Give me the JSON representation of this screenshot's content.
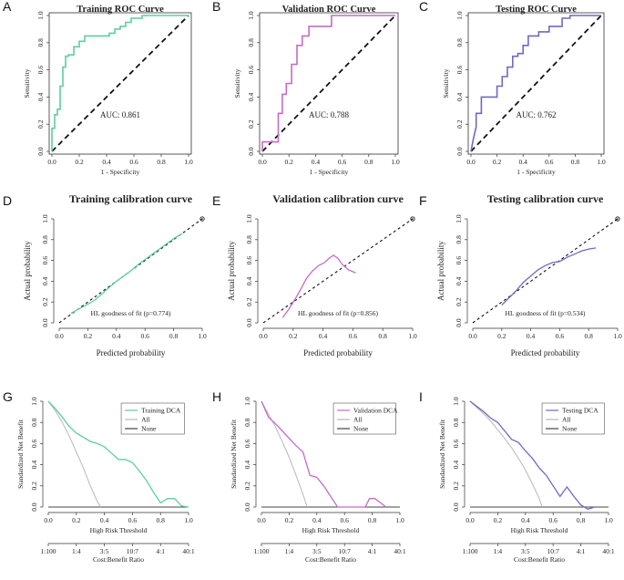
{
  "colors": {
    "training": "#5ccf9e",
    "validation": "#c36cc7",
    "testing": "#6f69c2",
    "all": "#b8b8b8",
    "none": "#444444",
    "axis": "#333333"
  },
  "chart_data": [
    {
      "id": "A",
      "letter": "A",
      "type": "line",
      "kind": "roc",
      "title": "Training ROC Curve",
      "xlabel": "1 - Specificity",
      "ylabel": "Sensitivity",
      "xlim": [
        0,
        1
      ],
      "ylim": [
        0,
        1
      ],
      "xticks": [
        "0.0",
        "0.2",
        "0.4",
        "0.6",
        "0.8",
        "1.0"
      ],
      "yticks": [
        "0.0",
        "0.2",
        "0.4",
        "0.6",
        "0.8",
        "1.0"
      ],
      "annotation": "AUC: 0.861",
      "color_key": "training",
      "series": [
        {
          "x": [
            0,
            0,
            0.02,
            0.02,
            0.04,
            0.04,
            0.06,
            0.06,
            0.08,
            0.08,
            0.1,
            0.1,
            0.12,
            0.12,
            0.16,
            0.16,
            0.2,
            0.2,
            0.24,
            0.24,
            0.42,
            0.42,
            0.46,
            0.46,
            0.5,
            0.5,
            0.54,
            0.54,
            0.58,
            0.58,
            0.66,
            0.66,
            1.0
          ],
          "y": [
            0,
            0.17,
            0.17,
            0.27,
            0.27,
            0.31,
            0.31,
            0.48,
            0.48,
            0.62,
            0.62,
            0.7,
            0.7,
            0.71,
            0.71,
            0.77,
            0.77,
            0.81,
            0.81,
            0.85,
            0.85,
            0.87,
            0.87,
            0.9,
            0.9,
            0.92,
            0.92,
            0.95,
            0.95,
            0.98,
            0.98,
            1.0,
            1.0
          ]
        }
      ]
    },
    {
      "id": "B",
      "letter": "B",
      "type": "line",
      "kind": "roc",
      "title": "Validation ROC Curve",
      "xlabel": "1 - Specificity",
      "ylabel": "Sensitivity",
      "xlim": [
        0,
        1
      ],
      "ylim": [
        0,
        1
      ],
      "xticks": [
        "0.0",
        "0.2",
        "0.4",
        "0.6",
        "0.8",
        "1.0"
      ],
      "yticks": [
        "0.0",
        "0.2",
        "0.4",
        "0.6",
        "0.8",
        "1.0"
      ],
      "annotation": "AUC: 0.788",
      "color_key": "validation",
      "series": [
        {
          "x": [
            0,
            0,
            0.05,
            0.05,
            0.12,
            0.12,
            0.15,
            0.15,
            0.18,
            0.18,
            0.22,
            0.22,
            0.26,
            0.26,
            0.3,
            0.3,
            0.35,
            0.35,
            0.52,
            0.52,
            1.0
          ],
          "y": [
            0,
            0.07,
            0.07,
            0.07,
            0.07,
            0.28,
            0.28,
            0.42,
            0.42,
            0.5,
            0.5,
            0.64,
            0.64,
            0.78,
            0.78,
            0.85,
            0.85,
            0.92,
            0.92,
            1.0,
            1.0
          ]
        }
      ]
    },
    {
      "id": "C",
      "letter": "C",
      "type": "line",
      "kind": "roc",
      "title": "Testing ROC Curve",
      "xlabel": "1 - Specificity",
      "ylabel": "Sensitivity",
      "xlim": [
        0,
        1
      ],
      "ylim": [
        0,
        1
      ],
      "xticks": [
        "0.0",
        "0.2",
        "0.4",
        "0.6",
        "0.8",
        "1.0"
      ],
      "yticks": [
        "0.0",
        "0.2",
        "0.4",
        "0.6",
        "0.8",
        "1.0"
      ],
      "annotation": "AUC: 0.762",
      "color_key": "testing",
      "series": [
        {
          "x": [
            0,
            0.02,
            0.04,
            0.04,
            0.08,
            0.08,
            0.2,
            0.2,
            0.24,
            0.24,
            0.28,
            0.28,
            0.32,
            0.32,
            0.36,
            0.36,
            0.4,
            0.4,
            0.44,
            0.44,
            0.52,
            0.52,
            0.6,
            0.6,
            0.7,
            0.7,
            0.76,
            0.76,
            1.0
          ],
          "y": [
            0,
            0.1,
            0.18,
            0.28,
            0.28,
            0.4,
            0.4,
            0.48,
            0.48,
            0.55,
            0.55,
            0.62,
            0.62,
            0.7,
            0.7,
            0.72,
            0.72,
            0.78,
            0.78,
            0.85,
            0.85,
            0.88,
            0.88,
            0.92,
            0.92,
            0.98,
            0.98,
            1.0,
            1.0
          ]
        }
      ]
    },
    {
      "id": "D",
      "letter": "D",
      "type": "line",
      "kind": "calibration",
      "title": "Training calibration curve",
      "xlabel": "Predicted probability",
      "ylabel": "Actual probability",
      "xlim": [
        0,
        1
      ],
      "ylim": [
        0,
        1
      ],
      "xticks": [
        "0.0",
        "0.2",
        "0.4",
        "0.6",
        "0.8",
        "1.0"
      ],
      "yticks": [
        "0.0",
        "0.2",
        "0.4",
        "0.6",
        "0.8",
        "1.0"
      ],
      "annotation": "HL goodness of fit (p=0.774)",
      "color_key": "training",
      "series": [
        {
          "x": [
            0.08,
            0.12,
            0.16,
            0.2,
            0.25,
            0.3,
            0.35,
            0.4,
            0.45,
            0.5,
            0.55,
            0.6,
            0.65,
            0.7,
            0.75,
            0.8,
            0.86
          ],
          "y": [
            0.09,
            0.12,
            0.15,
            0.18,
            0.22,
            0.28,
            0.34,
            0.4,
            0.45,
            0.5,
            0.56,
            0.61,
            0.66,
            0.71,
            0.76,
            0.81,
            0.86
          ]
        }
      ]
    },
    {
      "id": "E",
      "letter": "E",
      "type": "line",
      "kind": "calibration",
      "title": "Validation calibration curve",
      "xlabel": "Predicted probability",
      "ylabel": "Actual probability",
      "xlim": [
        0,
        1
      ],
      "ylim": [
        0,
        1
      ],
      "xticks": [
        "0.0",
        "0.2",
        "0.4",
        "0.6",
        "0.8",
        "1.0"
      ],
      "yticks": [
        "0.0",
        "0.2",
        "0.4",
        "0.6",
        "0.8",
        "1.0"
      ],
      "annotation": "HL goodness of fit (p=0.856)",
      "color_key": "validation",
      "series": [
        {
          "x": [
            0.13,
            0.17,
            0.21,
            0.25,
            0.29,
            0.33,
            0.37,
            0.41,
            0.44,
            0.47,
            0.5,
            0.53,
            0.57,
            0.62
          ],
          "y": [
            0.05,
            0.13,
            0.22,
            0.32,
            0.43,
            0.5,
            0.55,
            0.58,
            0.62,
            0.65,
            0.62,
            0.56,
            0.51,
            0.48
          ]
        }
      ]
    },
    {
      "id": "F",
      "letter": "F",
      "type": "line",
      "kind": "calibration",
      "title": "Testing calibration curve",
      "xlabel": "Predicted probability",
      "ylabel": "Actual probability",
      "xlim": [
        0,
        1
      ],
      "ylim": [
        0,
        1
      ],
      "xticks": [
        "0.0",
        "0.2",
        "0.4",
        "0.6",
        "0.8",
        "1.0"
      ],
      "yticks": [
        "0.0",
        "0.2",
        "0.4",
        "0.6",
        "0.8",
        "1.0"
      ],
      "annotation": "HL goodness of fit (p=0.534)",
      "color_key": "testing",
      "series": [
        {
          "x": [
            0.2,
            0.25,
            0.3,
            0.35,
            0.4,
            0.45,
            0.5,
            0.55,
            0.6,
            0.65,
            0.7,
            0.75,
            0.8,
            0.85
          ],
          "y": [
            0.17,
            0.24,
            0.31,
            0.39,
            0.45,
            0.51,
            0.55,
            0.58,
            0.59,
            0.63,
            0.66,
            0.69,
            0.71,
            0.72
          ]
        }
      ]
    },
    {
      "id": "G",
      "letter": "G",
      "type": "line",
      "kind": "dca",
      "xlabel": "High Risk Threshold",
      "ylabel": "Standardized Net Benefit",
      "xlabel2": "Cost:Benefit Ratio",
      "xlim": [
        0,
        1
      ],
      "ylim": [
        0,
        1
      ],
      "xticks": [
        "0.0",
        "0.2",
        "0.4",
        "0.6",
        "0.8",
        "1.0"
      ],
      "yticks": [
        "0.0",
        "0.2",
        "0.4",
        "0.6",
        "0.8",
        "1.0"
      ],
      "ratio_ticks": [
        "1:100",
        "1:4",
        "3:5",
        "10:7",
        "4:1",
        "40:1"
      ],
      "color_key": "training",
      "legend": [
        "Training DCA",
        "All",
        "None"
      ],
      "model": {
        "x": [
          0,
          0.05,
          0.1,
          0.15,
          0.2,
          0.25,
          0.3,
          0.35,
          0.4,
          0.45,
          0.5,
          0.55,
          0.6,
          0.65,
          0.7,
          0.75,
          0.8,
          0.85,
          0.9,
          0.95,
          1.0
        ],
        "y": [
          1.0,
          0.93,
          0.85,
          0.76,
          0.7,
          0.66,
          0.62,
          0.6,
          0.57,
          0.51,
          0.45,
          0.45,
          0.42,
          0.34,
          0.25,
          0.14,
          0.04,
          0.08,
          0.08,
          0.01,
          0.0
        ]
      },
      "all": {
        "x": [
          0,
          0.05,
          0.1,
          0.15,
          0.2,
          0.25,
          0.3,
          0.35,
          0.375
        ],
        "y": [
          1.0,
          0.91,
          0.8,
          0.67,
          0.52,
          0.37,
          0.2,
          0.05,
          0.0
        ]
      }
    },
    {
      "id": "H",
      "letter": "H",
      "type": "line",
      "kind": "dca",
      "xlabel": "High Risk Threshold",
      "ylabel": "Standardized Net Benefit",
      "xlabel2": "Cost:Benefit Ratio",
      "xlim": [
        0,
        1
      ],
      "ylim": [
        0,
        1
      ],
      "xticks": [
        "0.0",
        "0.2",
        "0.4",
        "0.6",
        "0.8",
        "1.0"
      ],
      "yticks": [
        "0.0",
        "0.2",
        "0.4",
        "0.6",
        "0.8",
        "1.0"
      ],
      "ratio_ticks": [
        "1:100",
        "1:4",
        "3:5",
        "10:7",
        "4:1",
        "40:1"
      ],
      "color_key": "validation",
      "legend": [
        "Validation DCA",
        "All",
        "None"
      ],
      "model": {
        "x": [
          0,
          0.05,
          0.1,
          0.15,
          0.2,
          0.25,
          0.3,
          0.35,
          0.4,
          0.45,
          0.5,
          0.55,
          0.6,
          0.65,
          0.7,
          0.75,
          0.78,
          0.82,
          0.86,
          0.9
        ],
        "y": [
          1.0,
          0.85,
          0.79,
          0.72,
          0.65,
          0.58,
          0.52,
          0.3,
          0.28,
          0.2,
          0.1,
          0.0,
          0.0,
          0.0,
          0.0,
          0.0,
          0.08,
          0.08,
          0.04,
          0.0
        ]
      },
      "all": {
        "x": [
          0,
          0.05,
          0.1,
          0.15,
          0.2,
          0.25,
          0.3,
          0.33
        ],
        "y": [
          1.0,
          0.88,
          0.76,
          0.62,
          0.47,
          0.3,
          0.12,
          0.0
        ]
      }
    },
    {
      "id": "I",
      "letter": "I",
      "type": "line",
      "kind": "dca",
      "xlabel": "High Risk Threshold",
      "ylabel": "Standardized Net Benefit",
      "xlabel2": "Cost:Benefit Ratio",
      "xlim": [
        0,
        1
      ],
      "ylim": [
        0,
        1
      ],
      "xticks": [
        "0.0",
        "0.2",
        "0.4",
        "0.6",
        "0.8",
        "1.0"
      ],
      "yticks": [
        "0.0",
        "0.2",
        "0.4",
        "0.6",
        "0.8",
        "1.0"
      ],
      "ratio_ticks": [
        "1:100",
        "1:4",
        "3:5",
        "10:7",
        "4:1",
        "40:1"
      ],
      "color_key": "testing",
      "legend": [
        "Testing DCA",
        "All",
        "None"
      ],
      "model": {
        "x": [
          0,
          0.05,
          0.1,
          0.15,
          0.2,
          0.25,
          0.3,
          0.35,
          0.4,
          0.45,
          0.5,
          0.55,
          0.6,
          0.65,
          0.7,
          0.75,
          0.8,
          0.85,
          0.9
        ],
        "y": [
          1.0,
          0.95,
          0.9,
          0.84,
          0.8,
          0.72,
          0.64,
          0.61,
          0.53,
          0.46,
          0.37,
          0.3,
          0.2,
          0.1,
          0.19,
          0.1,
          0.02,
          -0.02,
          0.0
        ]
      },
      "all": {
        "x": [
          0,
          0.05,
          0.1,
          0.15,
          0.2,
          0.25,
          0.3,
          0.35,
          0.4,
          0.45,
          0.5,
          0.52
        ],
        "y": [
          1.0,
          0.94,
          0.88,
          0.81,
          0.73,
          0.65,
          0.56,
          0.46,
          0.35,
          0.22,
          0.08,
          0.0
        ]
      }
    }
  ]
}
